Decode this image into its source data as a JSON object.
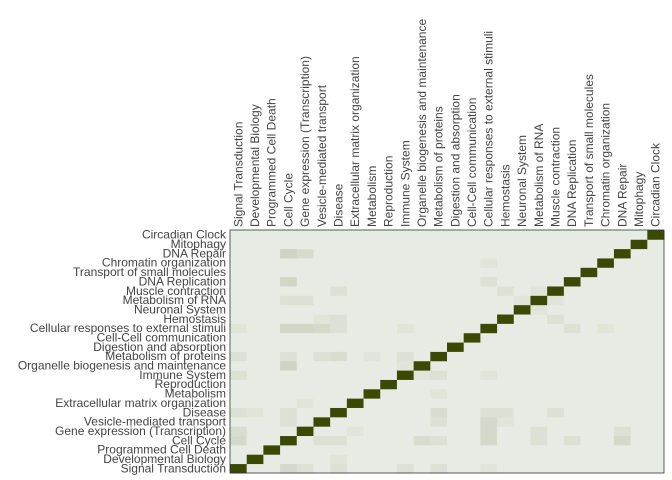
{
  "chart_data": {
    "type": "heatmap",
    "title": "",
    "xlabel": "",
    "ylabel": "",
    "categories": [
      "Signal Transduction",
      "Developmental Biology",
      "Programmed Cell Death",
      "Cell Cycle",
      "Gene expression (Transcription)",
      "Vesicle-mediated transport",
      "Disease",
      "Extracellular matrix organization",
      "Metabolism",
      "Reproduction",
      "Immune System",
      "Organelle biogenesis and maintenance",
      "Metabolism of proteins",
      "Digestion and absorption",
      "Cell-Cell communication",
      "Cellular responses to external stimuli",
      "Hemostasis",
      "Neuronal System",
      "Metabolism of RNA",
      "Muscle contraction",
      "DNA Replication",
      "Transport of small molecules",
      "Chromatin organization",
      "DNA Repair",
      "Mitophagy",
      "Circadian Clock"
    ],
    "value_range": [
      0,
      1
    ],
    "diagonal_value": 1,
    "background_value": 0.06,
    "off_diagonal": [
      {
        "x": 3,
        "y": 23,
        "v": 0.2
      },
      {
        "x": 4,
        "y": 23,
        "v": 0.15
      },
      {
        "x": 3,
        "y": 20,
        "v": 0.18
      },
      {
        "x": 6,
        "y": 19,
        "v": 0.12
      },
      {
        "x": 4,
        "y": 18,
        "v": 0.12
      },
      {
        "x": 3,
        "y": 18,
        "v": 0.12
      },
      {
        "x": 16,
        "y": 19,
        "v": 0.12
      },
      {
        "x": 19,
        "y": 18,
        "v": 0.1
      },
      {
        "x": 19,
        "y": 16,
        "v": 0.12
      },
      {
        "x": 18,
        "y": 17,
        "v": 0.1
      },
      {
        "x": 3,
        "y": 15,
        "v": 0.18
      },
      {
        "x": 4,
        "y": 15,
        "v": 0.18
      },
      {
        "x": 5,
        "y": 15,
        "v": 0.16
      },
      {
        "x": 6,
        "y": 15,
        "v": 0.12
      },
      {
        "x": 3,
        "y": 11,
        "v": 0.2
      },
      {
        "x": 3,
        "y": 12,
        "v": 0.12
      },
      {
        "x": 5,
        "y": 12,
        "v": 0.12
      },
      {
        "x": 6,
        "y": 16,
        "v": 0.12
      },
      {
        "x": 12,
        "y": 10,
        "v": 0.12
      },
      {
        "x": 11,
        "y": 10,
        "v": 0.1
      },
      {
        "x": 12,
        "y": 8,
        "v": 0.1
      },
      {
        "x": 12,
        "y": 6,
        "v": 0.14
      },
      {
        "x": 0,
        "y": 6,
        "v": 0.12
      },
      {
        "x": 0,
        "y": 4,
        "v": 0.14
      },
      {
        "x": 0,
        "y": 3,
        "v": 0.16
      },
      {
        "x": 11,
        "y": 3,
        "v": 0.14
      },
      {
        "x": 15,
        "y": 3,
        "v": 0.16
      },
      {
        "x": 15,
        "y": 4,
        "v": 0.16
      },
      {
        "x": 5,
        "y": 3,
        "v": 0.12
      },
      {
        "x": 20,
        "y": 3,
        "v": 0.12
      },
      {
        "x": 23,
        "y": 3,
        "v": 0.16
      },
      {
        "x": 23,
        "y": 4,
        "v": 0.12
      },
      {
        "x": 6,
        "y": 3,
        "v": 0.12
      },
      {
        "x": 6,
        "y": 0,
        "v": 0.12
      },
      {
        "x": 10,
        "y": 0,
        "v": 0.12
      },
      {
        "x": 4,
        "y": 0,
        "v": 0.12
      },
      {
        "x": 1,
        "y": 6,
        "v": 0.1
      },
      {
        "x": 15,
        "y": 20,
        "v": 0.12
      },
      {
        "x": 15,
        "y": 22,
        "v": 0.1
      },
      {
        "x": 4,
        "y": 7,
        "v": 0.1
      },
      {
        "x": 0,
        "y": 12,
        "v": 0.12
      },
      {
        "x": 0,
        "y": 15,
        "v": 0.1
      },
      {
        "x": 10,
        "y": 15,
        "v": 0.1
      },
      {
        "x": 16,
        "y": 5,
        "v": 0.1
      }
    ]
  },
  "colors": {
    "low": "#f1f6f1",
    "high": "#3a4a04",
    "background_tile": "#e4eee4",
    "frame": "#333333"
  }
}
